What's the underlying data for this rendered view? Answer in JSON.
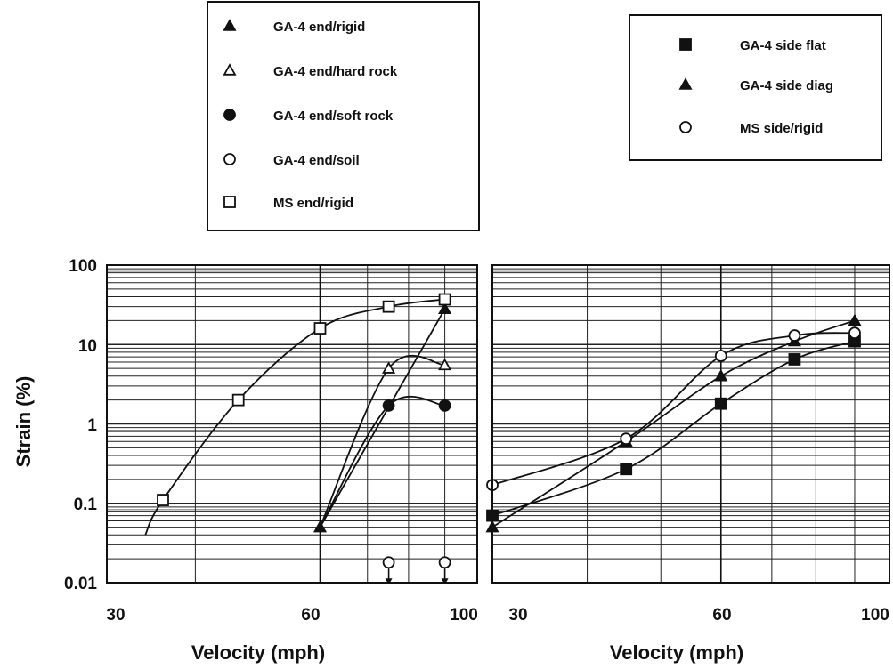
{
  "chart_data": [
    {
      "type": "line",
      "xlabel": "Velocity (mph)",
      "ylabel": "Strain (%)",
      "x_scale": "log",
      "y_scale": "log",
      "xlim": [
        30,
        100
      ],
      "ylim": [
        0.01,
        100
      ],
      "x_ticks": [
        "30",
        "60",
        "100"
      ],
      "y_ticks": [
        "0.01",
        "0.1",
        "1",
        "10",
        "100"
      ],
      "grid": true,
      "legend": {
        "placement": "top",
        "entries": [
          "GA-4 end/rigid",
          "GA-4 end/hard rock",
          "GA-4 end/soft rock",
          "GA-4 end/soil",
          "MS end/rigid"
        ]
      },
      "series": [
        {
          "name": "GA-4 end/rigid",
          "marker": "filled-triangle",
          "color": "#111111",
          "x": [
            60,
            90
          ],
          "y": [
            0.05,
            28
          ]
        },
        {
          "name": "GA-4 end/hard rock",
          "marker": "open-triangle",
          "color": "#111111",
          "x": [
            60,
            75,
            90
          ],
          "y": [
            0.05,
            5,
            5.5
          ]
        },
        {
          "name": "GA-4 end/soft rock",
          "marker": "filled-circle",
          "color": "#111111",
          "x": [
            60,
            75,
            90
          ],
          "y": [
            0.05,
            1.7,
            1.7
          ]
        },
        {
          "name": "GA-4 end/soil",
          "marker": "open-circle",
          "color": "#111111",
          "x": [
            75,
            90
          ],
          "y": [
            0.018,
            0.018
          ],
          "note": "arrow-down"
        },
        {
          "name": "MS end/rigid",
          "marker": "open-square",
          "color": "#111111",
          "x": [
            34,
            36,
            46,
            60,
            75,
            90
          ],
          "y": [
            0.04,
            0.11,
            2,
            16,
            30,
            37
          ]
        }
      ]
    },
    {
      "type": "line",
      "xlabel": "Velocity (mph)",
      "ylabel": "",
      "x_scale": "log",
      "y_scale": "log",
      "xlim": [
        30,
        100
      ],
      "ylim": [
        0.01,
        100
      ],
      "x_ticks": [
        "30",
        "60",
        "100"
      ],
      "grid": true,
      "legend": {
        "placement": "top-right",
        "entries": [
          "GA-4 side flat",
          "GA-4 side diag",
          "MS side/rigid"
        ]
      },
      "series": [
        {
          "name": "GA-4 side flat",
          "marker": "filled-square",
          "color": "#111111",
          "x": [
            30,
            45,
            60,
            75,
            90
          ],
          "y": [
            0.07,
            0.27,
            1.8,
            6.5,
            11
          ]
        },
        {
          "name": "GA-4 side diag",
          "marker": "filled-triangle",
          "color": "#111111",
          "x": [
            30,
            45,
            60,
            75,
            90
          ],
          "y": [
            0.05,
            0.6,
            4,
            11,
            20
          ]
        },
        {
          "name": "MS side/rigid",
          "marker": "open-circle",
          "color": "#111111",
          "x": [
            30,
            45,
            60,
            75,
            90
          ],
          "y": [
            0.17,
            0.65,
            7.2,
            13,
            14
          ]
        }
      ]
    }
  ]
}
